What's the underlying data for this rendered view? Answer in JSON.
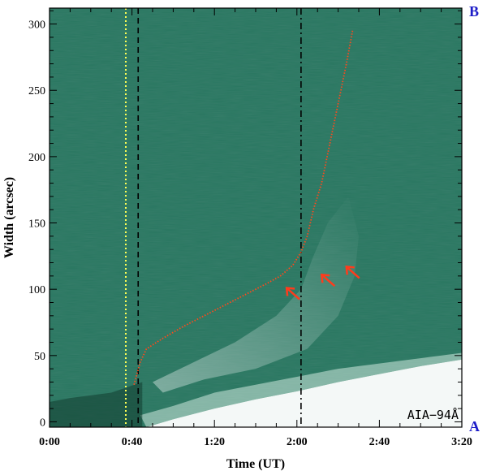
{
  "chart_data": {
    "type": "time-distance",
    "xlabel": "Time (UT)",
    "ylabel": "Width (arcsec)",
    "x_ticks": [
      "0:00",
      "0:40",
      "1:20",
      "2:00",
      "2:40",
      "3:20"
    ],
    "x_tick_minutes": [
      0,
      40,
      80,
      120,
      160,
      200
    ],
    "y_ticks": [
      0,
      50,
      100,
      150,
      200,
      250,
      300
    ],
    "xlim_minutes": [
      0,
      200
    ],
    "ylim": [
      -4,
      312
    ],
    "panel_label": "AIA−94Å",
    "corner_top_right": "B",
    "corner_bottom_right": "A",
    "colors": {
      "background": "#2b7862",
      "emission": "#ffffff",
      "fit_curve": "#ff4a1c",
      "arrow": "#ff3b1c",
      "yellow_line": "#ffff55",
      "corner_label": "#1d1dc8"
    },
    "vertical_lines": [
      {
        "name": "yellow-dotted",
        "t_minutes": 37,
        "style": "dotted",
        "color": "#ffff55"
      },
      {
        "name": "black-dashed",
        "t_minutes": 43,
        "style": "dashed",
        "color": "#000000"
      },
      {
        "name": "black-dashdot",
        "t_minutes": 122,
        "style": "dashdot",
        "color": "#000000"
      }
    ],
    "fit_curve": [
      {
        "t": 41,
        "w": 28
      },
      {
        "t": 44,
        "w": 45
      },
      {
        "t": 47,
        "w": 55
      },
      {
        "t": 55,
        "w": 63
      },
      {
        "t": 65,
        "w": 72
      },
      {
        "t": 75,
        "w": 80
      },
      {
        "t": 85,
        "w": 88
      },
      {
        "t": 95,
        "w": 96
      },
      {
        "t": 105,
        "w": 104
      },
      {
        "t": 112,
        "w": 110
      },
      {
        "t": 118,
        "w": 118
      },
      {
        "t": 122,
        "w": 128
      },
      {
        "t": 125,
        "w": 140
      },
      {
        "t": 128,
        "w": 160
      },
      {
        "t": 132,
        "w": 180
      },
      {
        "t": 136,
        "w": 210
      },
      {
        "t": 140,
        "w": 240
      },
      {
        "t": 144,
        "w": 270
      },
      {
        "t": 147,
        "w": 295
      }
    ],
    "arrows": [
      {
        "t": 115,
        "w": 101
      },
      {
        "t": 132,
        "w": 111
      },
      {
        "t": 144,
        "w": 117
      }
    ]
  }
}
